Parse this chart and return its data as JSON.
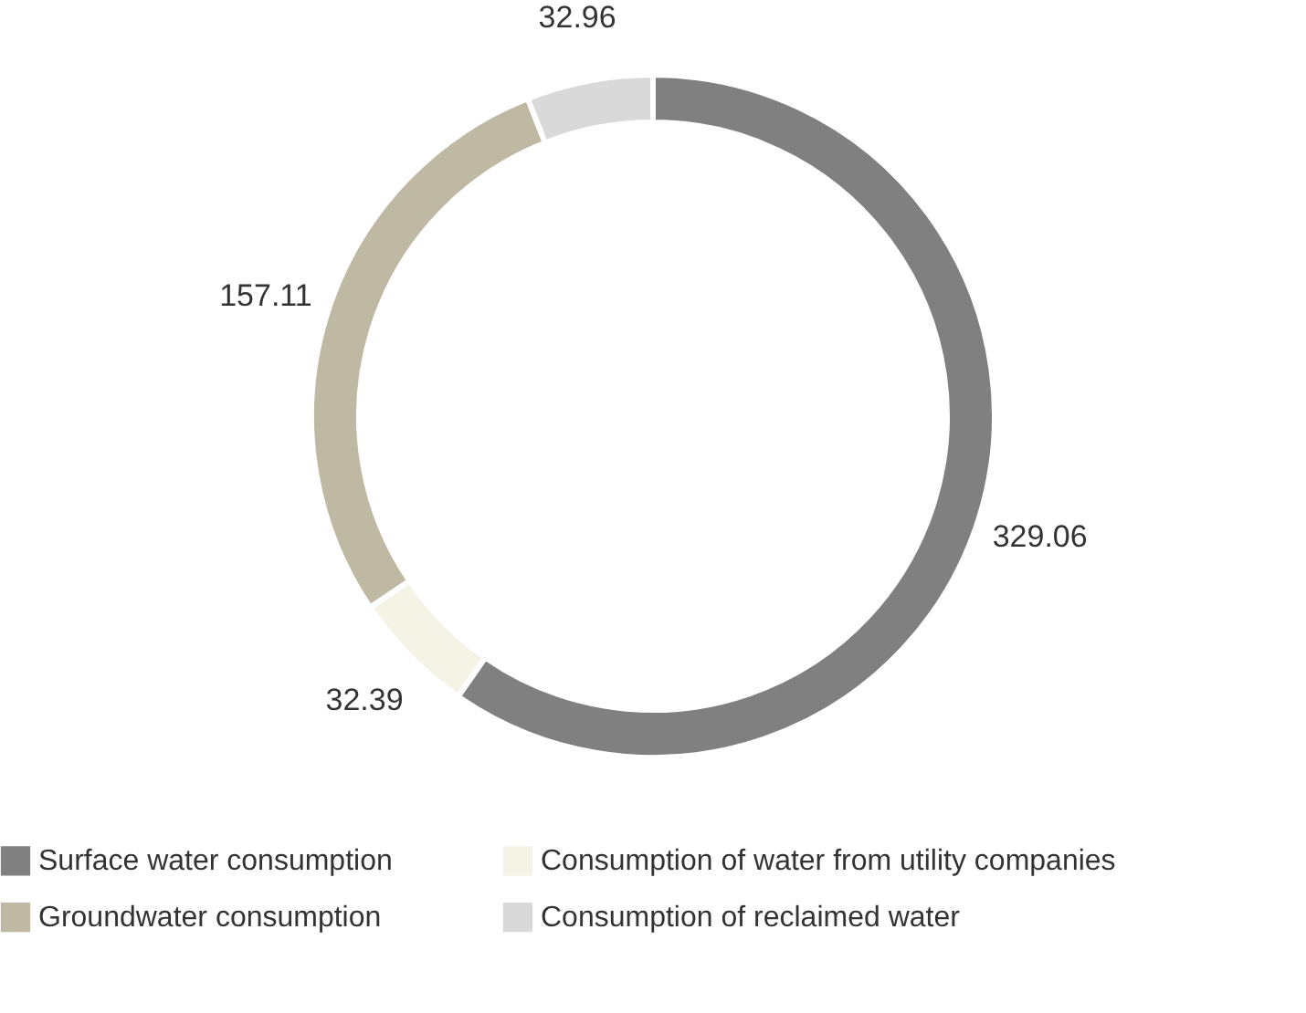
{
  "chart_data": {
    "type": "donut",
    "categories": [
      "Surface water consumption",
      "Consumption of water from utility companies",
      "Groundwater consumption",
      "Consumption of reclaimed water"
    ],
    "values": [
      329.06,
      32.39,
      157.11,
      32.96
    ],
    "colors": [
      "#808080",
      "#f5f2e6",
      "#bfb8a3",
      "#d9d9d9"
    ],
    "data_labels": true,
    "legend": "bottom"
  }
}
